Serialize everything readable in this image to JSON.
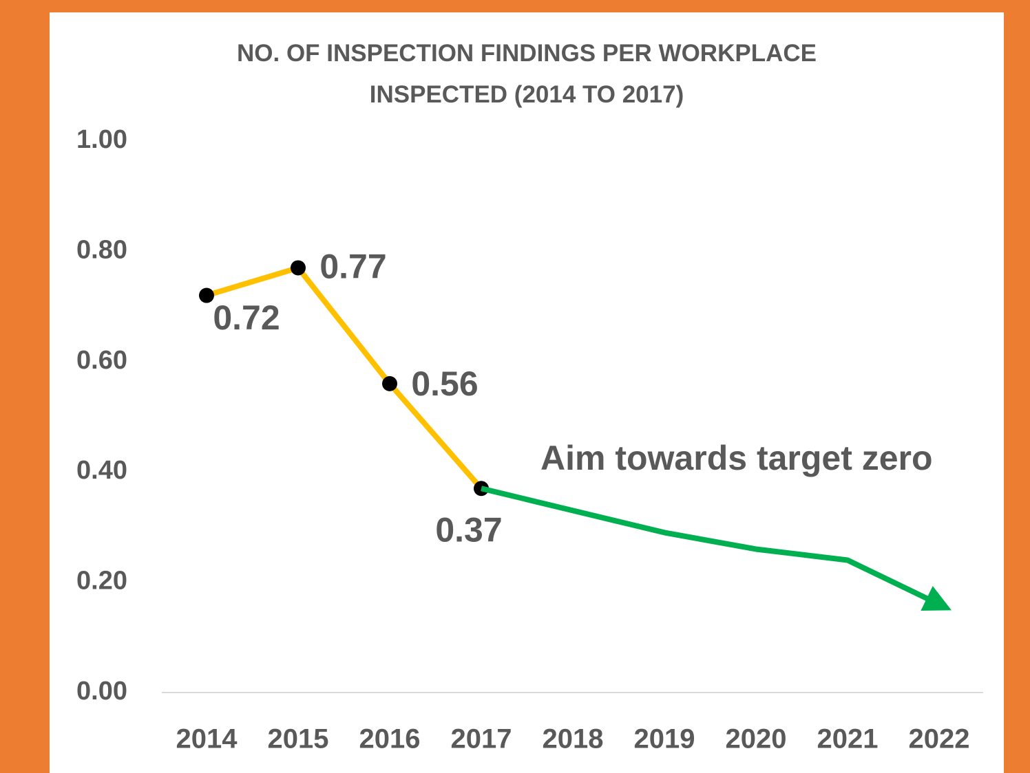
{
  "chart_data": {
    "type": "line",
    "title": "NO. OF INSPECTION FINDINGS PER WORKPLACE INSPECTED (2014 TO 2017)",
    "categories": [
      "2014",
      "2015",
      "2016",
      "2017",
      "2018",
      "2019",
      "2020",
      "2021",
      "2022"
    ],
    "series": [
      {
        "color": "#FFC000",
        "marker": true,
        "marker_color": "#000000",
        "data_labels": true,
        "values": [
          0.72,
          0.77,
          0.56,
          0.37,
          null,
          null,
          null,
          null,
          null
        ]
      },
      {
        "color": "#00B050",
        "marker": false,
        "arrow": true,
        "data_labels": false,
        "values": [
          null,
          null,
          null,
          0.37,
          0.33,
          0.29,
          0.26,
          0.24,
          0.16
        ]
      }
    ],
    "annotation": "Aim towards target zero",
    "annotation_color": "#00B050",
    "ylim": [
      0,
      1
    ],
    "yticks": [
      {
        "value": 0,
        "label": "0.00"
      },
      {
        "value": 0.2,
        "label": "0.20"
      },
      {
        "value": 0.4,
        "label": "0.40"
      },
      {
        "value": 0.6,
        "label": "0.60"
      },
      {
        "value": 0.8,
        "label": "0.80"
      },
      {
        "value": 1,
        "label": "1.00"
      }
    ],
    "grid": false
  }
}
